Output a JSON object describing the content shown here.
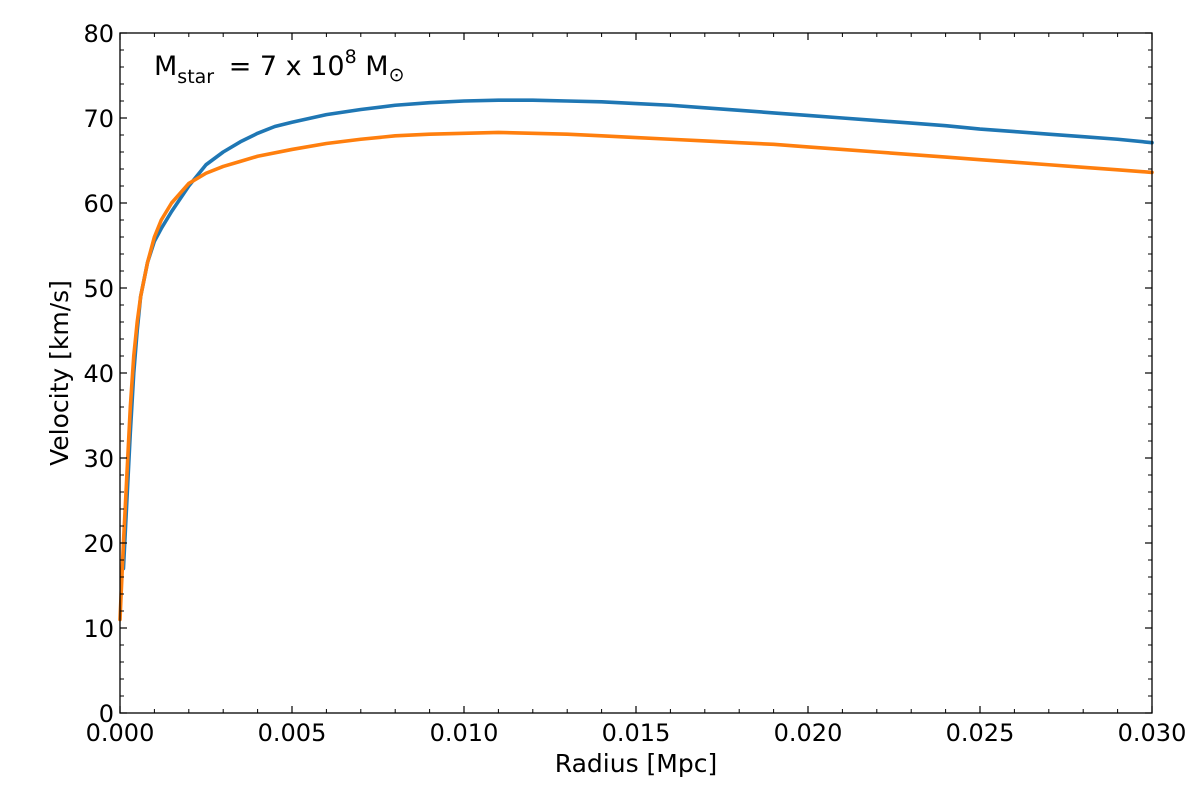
{
  "chart_data": {
    "type": "line",
    "xlabel": "Radius [Mpc]",
    "ylabel": "Velocity [km/s]",
    "xlim": [
      0.0,
      0.03
    ],
    "ylim": [
      0,
      80
    ],
    "x_ticks": [
      "0.000",
      "0.005",
      "0.010",
      "0.015",
      "0.020",
      "0.025",
      "0.030"
    ],
    "x_tick_values": [
      0.0,
      0.005,
      0.01,
      0.015,
      0.02,
      0.025,
      0.03
    ],
    "y_ticks": [
      "0",
      "10",
      "20",
      "30",
      "40",
      "50",
      "60",
      "70",
      "80"
    ],
    "y_tick_values": [
      0,
      10,
      20,
      30,
      40,
      50,
      60,
      70,
      80
    ],
    "grid": false,
    "annotation": {
      "base": "M",
      "subscript": "star",
      "mid": " = 7 x 10",
      "superscript": "8",
      "unit": " M",
      "unit_subscript": "⊙"
    },
    "series": [
      {
        "color": "#1f77b4",
        "x": [
          0.0001,
          0.0002,
          0.0003,
          0.0004,
          0.0005,
          0.0006,
          0.0008,
          0.001,
          0.0012,
          0.0015,
          0.002,
          0.0025,
          0.003,
          0.0035,
          0.004,
          0.0045,
          0.005,
          0.006,
          0.007,
          0.008,
          0.009,
          0.01,
          0.011,
          0.012,
          0.013,
          0.014,
          0.015,
          0.016,
          0.017,
          0.018,
          0.019,
          0.02,
          0.021,
          0.022,
          0.023,
          0.024,
          0.025,
          0.026,
          0.027,
          0.028,
          0.029,
          0.03
        ],
        "values": [
          17,
          25,
          33,
          40,
          45,
          49,
          53,
          55.5,
          57,
          59,
          62,
          64.5,
          66,
          67.2,
          68.2,
          69,
          69.5,
          70.4,
          71,
          71.5,
          71.8,
          72,
          72.1,
          72.1,
          72,
          71.9,
          71.7,
          71.5,
          71.2,
          70.9,
          70.6,
          70.3,
          70,
          69.7,
          69.4,
          69.1,
          68.7,
          68.4,
          68.1,
          67.8,
          67.5,
          67.1
        ]
      },
      {
        "color": "#ff7f0e",
        "x": [
          0.0,
          0.0001,
          0.0002,
          0.0003,
          0.0004,
          0.0005,
          0.0006,
          0.0008,
          0.001,
          0.0012,
          0.0015,
          0.002,
          0.0025,
          0.003,
          0.0035,
          0.004,
          0.005,
          0.006,
          0.007,
          0.008,
          0.009,
          0.01,
          0.011,
          0.012,
          0.013,
          0.014,
          0.015,
          0.016,
          0.017,
          0.018,
          0.019,
          0.02,
          0.021,
          0.022,
          0.023,
          0.024,
          0.025,
          0.026,
          0.027,
          0.028,
          0.029,
          0.03
        ],
        "values": [
          11,
          20,
          28,
          36,
          42,
          46,
          49,
          53,
          56,
          58,
          60,
          62.3,
          63.5,
          64.3,
          64.9,
          65.5,
          66.3,
          67,
          67.5,
          67.9,
          68.1,
          68.2,
          68.3,
          68.2,
          68.1,
          67.9,
          67.7,
          67.5,
          67.3,
          67.1,
          66.9,
          66.6,
          66.3,
          66,
          65.7,
          65.4,
          65.1,
          64.8,
          64.5,
          64.2,
          63.9,
          63.6
        ]
      }
    ]
  }
}
